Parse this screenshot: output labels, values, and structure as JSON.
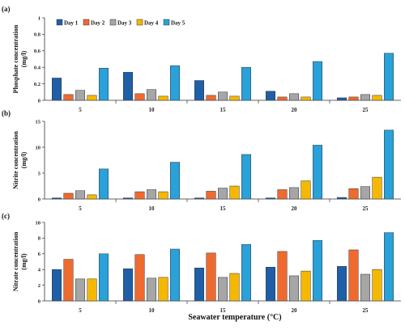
{
  "figure": {
    "x_label": "Seawater temperature (°C)",
    "colors": [
      "#1f5fa8",
      "#ef6a2e",
      "#a6a6a6",
      "#f5b800",
      "#2aa1d8"
    ]
  },
  "chart_data": [
    {
      "type": "bar",
      "panel_label": "(a)",
      "categories": [
        "5",
        "10",
        "15",
        "20",
        "25"
      ],
      "ylabel": "Phosphate concentration (mg/l)",
      "ylim": [
        0,
        1
      ],
      "yticks": [
        "0",
        "0.2",
        "0.4",
        "0.6",
        "0.8",
        "1"
      ],
      "legend": "top-left",
      "series": [
        {
          "name": "Day 1",
          "values": [
            0.27,
            0.34,
            0.24,
            0.11,
            0.03
          ]
        },
        {
          "name": "Day 2",
          "values": [
            0.07,
            0.08,
            0.06,
            0.04,
            0.04
          ]
        },
        {
          "name": "Day 3",
          "values": [
            0.12,
            0.13,
            0.1,
            0.08,
            0.07
          ]
        },
        {
          "name": "Day 4",
          "values": [
            0.06,
            0.05,
            0.05,
            0.04,
            0.06
          ]
        },
        {
          "name": "Day 5",
          "values": [
            0.39,
            0.42,
            0.4,
            0.47,
            0.57
          ]
        }
      ]
    },
    {
      "type": "bar",
      "panel_label": "(b)",
      "categories": [
        "5",
        "10",
        "15",
        "20",
        "25"
      ],
      "ylabel": "Nitrite concentration (mg/l)",
      "ylim": [
        0,
        15
      ],
      "yticks": [
        "0",
        "5",
        "10",
        "15"
      ],
      "series": [
        {
          "name": "Day 1",
          "values": [
            0.2,
            0.2,
            0.2,
            0.2,
            0.3
          ]
        },
        {
          "name": "Day 2",
          "values": [
            1.1,
            1.4,
            1.5,
            1.8,
            2.0
          ]
        },
        {
          "name": "Day 3",
          "values": [
            1.6,
            1.8,
            2.1,
            2.2,
            2.4
          ]
        },
        {
          "name": "Day 4",
          "values": [
            0.8,
            1.4,
            2.5,
            3.5,
            4.2
          ]
        },
        {
          "name": "Day 5",
          "values": [
            5.8,
            7.1,
            8.6,
            10.4,
            13.3
          ]
        }
      ]
    },
    {
      "type": "bar",
      "panel_label": "(c)",
      "categories": [
        "5",
        "10",
        "15",
        "20",
        "25"
      ],
      "ylabel": "Nitrate concentration (mg/l)",
      "ylim": [
        0,
        10
      ],
      "yticks": [
        "0",
        "2",
        "4",
        "6",
        "8",
        "10"
      ],
      "series": [
        {
          "name": "Day 1",
          "values": [
            4.0,
            4.1,
            4.2,
            4.3,
            4.4
          ]
        },
        {
          "name": "Day 2",
          "values": [
            5.3,
            5.9,
            6.1,
            6.3,
            6.5
          ]
        },
        {
          "name": "Day 3",
          "values": [
            2.8,
            2.9,
            3.0,
            3.2,
            3.4
          ]
        },
        {
          "name": "Day 4",
          "values": [
            2.8,
            3.0,
            3.5,
            3.8,
            4.0
          ]
        },
        {
          "name": "Day 5",
          "values": [
            6.0,
            6.6,
            7.2,
            7.7,
            8.7
          ]
        }
      ]
    }
  ]
}
